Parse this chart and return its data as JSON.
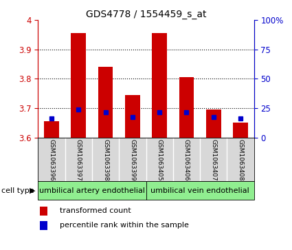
{
  "title": "GDS4778 / 1554459_s_at",
  "samples": [
    "GSM1063396",
    "GSM1063397",
    "GSM1063398",
    "GSM1063399",
    "GSM1063405",
    "GSM1063406",
    "GSM1063407",
    "GSM1063408"
  ],
  "red_values": [
    3.655,
    3.955,
    3.84,
    3.745,
    3.955,
    3.805,
    3.695,
    3.65
  ],
  "blue_values": [
    3.665,
    3.695,
    3.685,
    3.67,
    3.685,
    3.685,
    3.67,
    3.665
  ],
  "ymin": 3.6,
  "ymax": 4.0,
  "yticks": [
    3.6,
    3.7,
    3.8,
    3.9,
    4.0
  ],
  "ytick_labels": [
    "3.6",
    "3.7",
    "3.8",
    "3.9",
    "4"
  ],
  "right_ytick_positions": [
    3.6,
    3.7,
    3.8,
    3.9,
    4.0
  ],
  "right_yticklabels": [
    "0",
    "25",
    "50",
    "75",
    "100%"
  ],
  "group1_label": "umbilical artery endothelial",
  "group2_label": "umbilical vein endothelial",
  "group_color": "#90EE90",
  "bar_color": "#CC0000",
  "blue_color": "#0000CC",
  "bar_width": 0.55,
  "baseline": 3.6,
  "legend_red_label": "transformed count",
  "legend_blue_label": "percentile rank within the sample",
  "left_tick_color": "#CC0000",
  "right_tick_color": "#0000CC",
  "bg_gray": "#D8D8D8",
  "title_fontsize": 10,
  "tick_fontsize": 8.5,
  "sample_fontsize": 6.5,
  "cell_fontsize": 8,
  "legend_fontsize": 8
}
